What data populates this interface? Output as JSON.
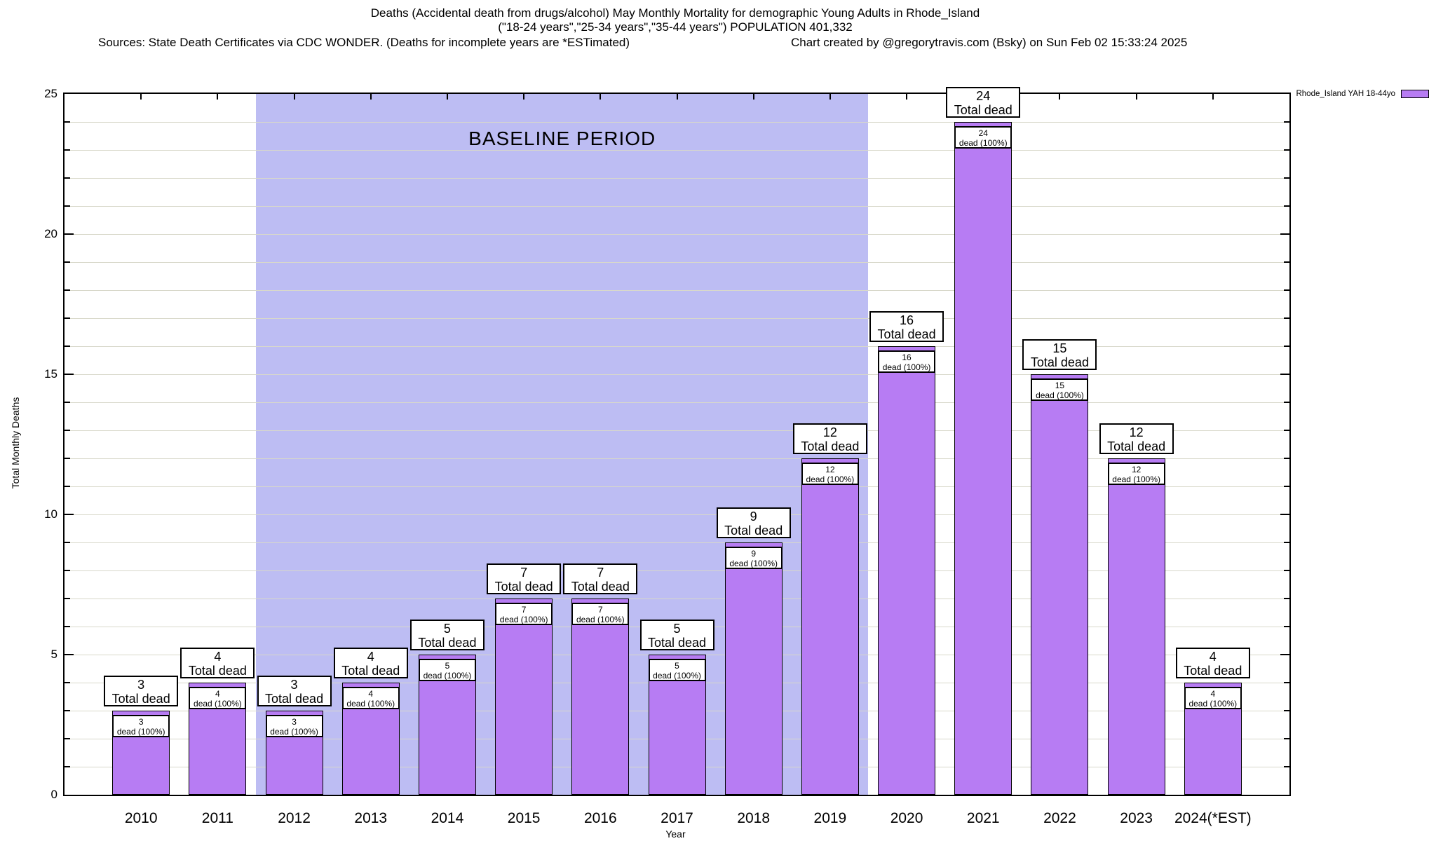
{
  "header": {
    "sources": "Sources: State Death Certificates via CDC WONDER. (Deaths for incomplete years are *ESTimated)",
    "credit": "Chart created by @gregorytravis.com (Bsky) on Sun Feb 02 15:33:24 2025"
  },
  "legend": {
    "label": "Rhode_Island YAH 18-44yo"
  },
  "chart_data": {
    "type": "bar",
    "title": "Deaths (Accidental death from drugs/alcohol) May Monthly Mortality for demographic Young Adults in Rhode_Island",
    "subtitle": "(\"18-24 years\",\"25-34 years\",\"35-44 years\") POPULATION 401,332",
    "xlabel": "Year",
    "ylabel": "Total Monthly Deaths",
    "ylim": [
      0,
      25
    ],
    "ytick_labeled_interval": 5,
    "ytick_minor_interval": 1,
    "ytick_labels": [
      "0",
      "5",
      "10",
      "15",
      "20",
      "25"
    ],
    "grid": true,
    "legend_position": "top-right-outside",
    "categories": [
      "2010",
      "2011",
      "2012",
      "2013",
      "2014",
      "2015",
      "2016",
      "2017",
      "2018",
      "2019",
      "2020",
      "2021",
      "2022",
      "2023",
      "2024(*EST)"
    ],
    "values": [
      3,
      4,
      3,
      4,
      5,
      7,
      7,
      5,
      9,
      12,
      16,
      24,
      15,
      12,
      4
    ],
    "series": [
      {
        "name": "Rhode_Island YAH 18-44yo",
        "values": [
          3,
          4,
          3,
          4,
          5,
          7,
          7,
          5,
          9,
          12,
          16,
          24,
          15,
          12,
          4
        ]
      }
    ],
    "bars": [
      {
        "category": "2010",
        "value": 3,
        "top_label": "3",
        "top_sublabel": "Total dead",
        "inner_label": "3",
        "inner_sublabel": "dead (100%)"
      },
      {
        "category": "2011",
        "value": 4,
        "top_label": "4",
        "top_sublabel": "Total dead",
        "inner_label": "4",
        "inner_sublabel": "dead (100%)"
      },
      {
        "category": "2012",
        "value": 3,
        "top_label": "3",
        "top_sublabel": "Total dead",
        "inner_label": "3",
        "inner_sublabel": "dead (100%)"
      },
      {
        "category": "2013",
        "value": 4,
        "top_label": "4",
        "top_sublabel": "Total dead",
        "inner_label": "4",
        "inner_sublabel": "dead (100%)"
      },
      {
        "category": "2014",
        "value": 5,
        "top_label": "5",
        "top_sublabel": "Total dead",
        "inner_label": "5",
        "inner_sublabel": "dead (100%)"
      },
      {
        "category": "2015",
        "value": 7,
        "top_label": "7",
        "top_sublabel": "Total dead",
        "inner_label": "7",
        "inner_sublabel": "dead (100%)"
      },
      {
        "category": "2016",
        "value": 7,
        "top_label": "7",
        "top_sublabel": "Total dead",
        "inner_label": "7",
        "inner_sublabel": "dead (100%)"
      },
      {
        "category": "2017",
        "value": 5,
        "top_label": "5",
        "top_sublabel": "Total dead",
        "inner_label": "5",
        "inner_sublabel": "dead (100%)"
      },
      {
        "category": "2018",
        "value": 9,
        "top_label": "9",
        "top_sublabel": "Total dead",
        "inner_label": "9",
        "inner_sublabel": "dead (100%)"
      },
      {
        "category": "2019",
        "value": 12,
        "top_label": "12",
        "top_sublabel": "Total dead",
        "inner_label": "12",
        "inner_sublabel": "dead (100%)"
      },
      {
        "category": "2020",
        "value": 16,
        "top_label": "16",
        "top_sublabel": "Total dead",
        "inner_label": "16",
        "inner_sublabel": "dead (100%)"
      },
      {
        "category": "2021",
        "value": 24,
        "top_label": "24",
        "top_sublabel": "Total dead",
        "inner_label": "24",
        "inner_sublabel": "dead (100%)"
      },
      {
        "category": "2022",
        "value": 15,
        "top_label": "15",
        "top_sublabel": "Total dead",
        "inner_label": "15",
        "inner_sublabel": "dead (100%)"
      },
      {
        "category": "2023",
        "value": 12,
        "top_label": "12",
        "top_sublabel": "Total dead",
        "inner_label": "12",
        "inner_sublabel": "dead (100%)"
      },
      {
        "category": "2024(*EST)",
        "value": 4,
        "top_label": "4",
        "top_sublabel": "Total dead",
        "inner_label": "4",
        "inner_sublabel": "dead (100%)"
      }
    ],
    "baseline_region": {
      "label": "BASELINE PERIOD",
      "from_category": "2012",
      "to_category": "2019",
      "from_index": 2,
      "to_index": 9,
      "color": "#bdbdf3"
    },
    "colors": {
      "bar": "#b77cf3",
      "bar_border": "#000000",
      "region": "#bdbdf3",
      "grid": "#d8d8ca",
      "axis": "#000000"
    }
  }
}
